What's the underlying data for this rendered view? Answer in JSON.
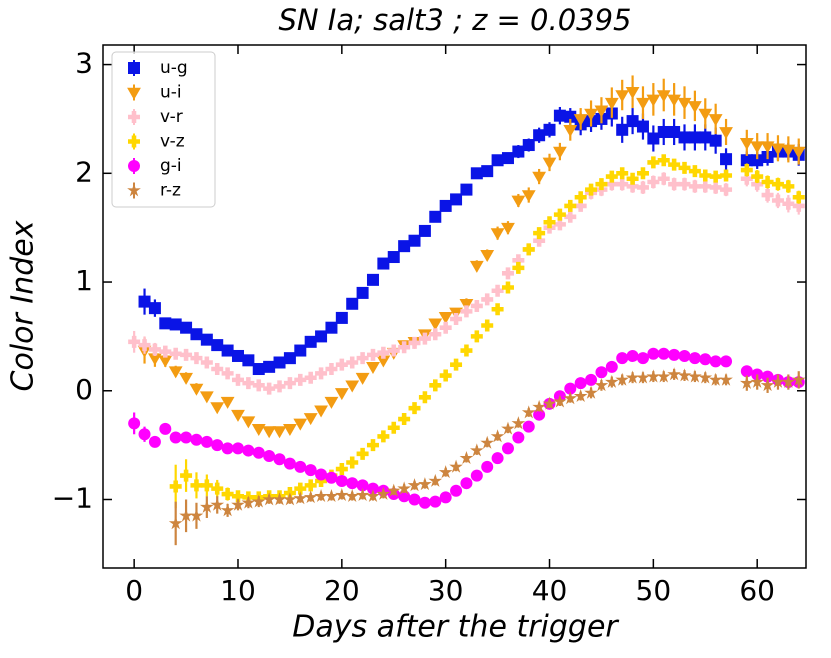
{
  "chart_data": {
    "type": "scatter",
    "title": "SN Ia; salt3 ; z  =  0.0395",
    "xlabel": "Days after the trigger",
    "ylabel": "Color Index",
    "xlim": [
      -3,
      64.7
    ],
    "ylim": [
      -1.63,
      3.18
    ],
    "xticks": [
      0,
      10,
      20,
      30,
      40,
      50,
      60
    ],
    "yticks": [
      {
        "value": -1,
        "label": "−1"
      },
      0,
      1,
      2,
      3
    ],
    "legend": "upper left",
    "x": [
      0,
      1,
      2,
      3,
      4,
      5,
      6,
      7,
      8,
      9,
      10,
      11,
      12,
      13,
      14,
      15,
      16,
      17,
      18,
      19,
      20,
      21,
      22,
      23,
      24,
      25,
      26,
      27,
      28,
      29,
      30,
      31,
      32,
      33,
      34,
      35,
      36,
      37,
      38,
      39,
      40,
      41,
      42,
      43,
      44,
      45,
      46,
      47,
      48,
      49,
      50,
      51,
      52,
      53,
      54,
      55,
      56,
      57,
      58,
      59,
      60,
      61,
      62,
      63,
      64
    ],
    "series": [
      {
        "name": "u-g",
        "color": "#0a14e6",
        "marker": "square",
        "values": [
          null,
          0.82,
          0.76,
          0.62,
          0.61,
          0.58,
          0.52,
          0.47,
          0.42,
          0.37,
          0.32,
          0.28,
          0.2,
          0.22,
          0.26,
          0.3,
          0.37,
          0.45,
          0.5,
          0.58,
          0.67,
          0.8,
          0.9,
          1.02,
          1.17,
          1.23,
          1.33,
          1.38,
          1.47,
          1.6,
          1.7,
          1.76,
          1.85,
          2.0,
          2.02,
          2.12,
          2.14,
          2.2,
          2.26,
          2.35,
          2.4,
          2.53,
          2.52,
          2.45,
          2.48,
          2.5,
          2.55,
          2.4,
          2.48,
          2.43,
          2.32,
          2.38,
          2.38,
          2.33,
          2.33,
          2.33,
          2.3,
          2.13,
          null,
          2.12,
          2.12,
          2.15,
          2.2,
          2.2,
          2.17
        ],
        "errors": [
          null,
          0.12,
          0.08,
          0.05,
          0.05,
          0.05,
          0.05,
          0.04,
          0.04,
          0.04,
          0.04,
          0.04,
          0.04,
          0.04,
          0.04,
          0.04,
          0.04,
          0.04,
          0.04,
          0.04,
          0.04,
          0.04,
          0.04,
          0.04,
          0.04,
          0.04,
          0.04,
          0.04,
          0.04,
          0.04,
          0.04,
          0.04,
          0.04,
          0.05,
          0.05,
          0.05,
          0.05,
          0.06,
          0.06,
          0.07,
          0.07,
          0.08,
          0.08,
          0.1,
          0.1,
          0.1,
          0.12,
          0.12,
          0.12,
          0.12,
          0.12,
          0.12,
          0.12,
          0.12,
          0.12,
          0.12,
          0.12,
          0.1,
          null,
          0.08,
          0.08,
          0.08,
          0.08,
          0.08,
          0.1
        ]
      },
      {
        "name": "u-i",
        "color": "#f39c12",
        "marker": "triangle-down",
        "values": [
          null,
          0.37,
          0.3,
          0.28,
          0.18,
          0.12,
          0.02,
          -0.05,
          -0.15,
          -0.1,
          -0.22,
          -0.28,
          -0.35,
          -0.37,
          -0.37,
          -0.35,
          -0.3,
          -0.25,
          -0.18,
          -0.1,
          -0.02,
          0.05,
          0.12,
          0.22,
          0.28,
          0.35,
          0.42,
          0.45,
          0.52,
          0.62,
          0.68,
          0.72,
          0.8,
          1.15,
          1.25,
          1.45,
          1.5,
          1.75,
          1.8,
          1.97,
          2.1,
          2.2,
          2.4,
          2.5,
          2.55,
          2.58,
          2.65,
          2.72,
          2.75,
          2.65,
          2.68,
          2.72,
          2.68,
          2.65,
          2.62,
          2.55,
          2.5,
          2.38,
          null,
          2.28,
          2.25,
          2.25,
          2.23,
          2.22,
          2.2
        ],
        "errors": [
          null,
          0.12,
          0.08,
          0.06,
          0.05,
          0.05,
          0.05,
          0.04,
          0.04,
          0.04,
          0.04,
          0.04,
          0.04,
          0.04,
          0.04,
          0.04,
          0.04,
          0.04,
          0.04,
          0.04,
          0.04,
          0.04,
          0.04,
          0.04,
          0.04,
          0.04,
          0.04,
          0.04,
          0.04,
          0.04,
          0.04,
          0.04,
          0.05,
          0.05,
          0.05,
          0.06,
          0.06,
          0.06,
          0.07,
          0.07,
          0.08,
          0.08,
          0.1,
          0.1,
          0.12,
          0.12,
          0.14,
          0.14,
          0.15,
          0.15,
          0.15,
          0.15,
          0.15,
          0.15,
          0.14,
          0.14,
          0.14,
          0.12,
          null,
          0.12,
          0.12,
          0.12,
          0.12,
          0.12,
          0.12
        ]
      },
      {
        "name": "v-r",
        "color": "#ffc0cb",
        "marker": "plus",
        "values": [
          0.45,
          0.42,
          0.38,
          0.36,
          0.34,
          0.33,
          0.3,
          0.26,
          0.2,
          0.16,
          0.1,
          0.07,
          0.05,
          0.02,
          0.04,
          0.07,
          0.1,
          0.12,
          0.16,
          0.2,
          0.24,
          0.26,
          0.3,
          0.33,
          0.35,
          0.37,
          0.4,
          0.44,
          0.48,
          0.52,
          0.58,
          0.66,
          0.73,
          0.78,
          0.84,
          0.92,
          1.08,
          1.2,
          1.3,
          1.38,
          1.5,
          1.53,
          1.6,
          1.7,
          1.82,
          1.85,
          1.9,
          1.9,
          1.88,
          1.87,
          1.92,
          1.95,
          1.9,
          1.9,
          1.88,
          1.88,
          1.87,
          1.85,
          null,
          1.95,
          1.9,
          1.8,
          1.75,
          1.72,
          1.7
        ],
        "errors": [
          0.1,
          0.08,
          0.06,
          0.05,
          0.05,
          0.05,
          0.04,
          0.04,
          0.04,
          0.04,
          0.04,
          0.04,
          0.04,
          0.04,
          0.04,
          0.04,
          0.04,
          0.04,
          0.04,
          0.04,
          0.04,
          0.04,
          0.04,
          0.04,
          0.04,
          0.04,
          0.04,
          0.04,
          0.04,
          0.04,
          0.04,
          0.04,
          0.04,
          0.04,
          0.04,
          0.04,
          0.04,
          0.04,
          0.05,
          0.05,
          0.05,
          0.05,
          0.05,
          0.05,
          0.06,
          0.06,
          0.06,
          0.06,
          0.06,
          0.06,
          0.06,
          0.06,
          0.06,
          0.06,
          0.06,
          0.06,
          0.06,
          0.06,
          null,
          0.07,
          0.07,
          0.07,
          0.07,
          0.08,
          0.08
        ]
      },
      {
        "name": "v-z",
        "color": "#ffd700",
        "marker": "plus-filled",
        "values": [
          null,
          null,
          null,
          null,
          -0.88,
          -0.78,
          -0.87,
          -0.87,
          -0.9,
          -0.95,
          -0.97,
          -0.98,
          -0.98,
          -0.97,
          -0.97,
          -0.94,
          -0.9,
          -0.87,
          -0.83,
          -0.78,
          -0.72,
          -0.66,
          -0.58,
          -0.5,
          -0.42,
          -0.34,
          -0.26,
          -0.16,
          -0.06,
          0.05,
          0.14,
          0.24,
          0.37,
          0.5,
          0.6,
          0.75,
          0.95,
          1.13,
          1.3,
          1.45,
          1.55,
          1.62,
          1.7,
          1.78,
          1.85,
          1.9,
          1.97,
          2.0,
          1.95,
          2.0,
          2.1,
          2.12,
          2.08,
          2.05,
          2.02,
          1.98,
          1.97,
          1.98,
          null,
          2.03,
          1.97,
          1.92,
          1.9,
          1.88,
          1.78
        ],
        "errors": [
          null,
          null,
          null,
          null,
          0.2,
          0.15,
          0.12,
          0.1,
          0.08,
          0.06,
          0.05,
          0.05,
          0.05,
          0.04,
          0.04,
          0.04,
          0.04,
          0.04,
          0.04,
          0.04,
          0.04,
          0.04,
          0.04,
          0.04,
          0.04,
          0.04,
          0.04,
          0.04,
          0.04,
          0.04,
          0.04,
          0.04,
          0.04,
          0.04,
          0.04,
          0.04,
          0.04,
          0.04,
          0.04,
          0.04,
          0.04,
          0.04,
          0.04,
          0.04,
          0.05,
          0.05,
          0.05,
          0.05,
          0.05,
          0.05,
          0.05,
          0.05,
          0.05,
          0.05,
          0.05,
          0.05,
          0.05,
          0.05,
          null,
          0.06,
          0.06,
          0.06,
          0.06,
          0.06,
          0.06
        ]
      },
      {
        "name": "g-i",
        "color": "#ff00ff",
        "marker": "circle",
        "values": [
          -0.3,
          -0.4,
          -0.47,
          -0.35,
          -0.43,
          -0.43,
          -0.45,
          -0.47,
          -0.5,
          -0.53,
          -0.53,
          -0.55,
          -0.57,
          -0.6,
          -0.63,
          -0.67,
          -0.7,
          -0.73,
          -0.77,
          -0.8,
          -0.83,
          -0.85,
          -0.87,
          -0.9,
          -0.92,
          -0.95,
          -0.97,
          -1.0,
          -1.03,
          -1.02,
          -0.98,
          -0.92,
          -0.85,
          -0.78,
          -0.7,
          -0.62,
          -0.53,
          -0.43,
          -0.33,
          -0.22,
          -0.12,
          -0.05,
          0.02,
          0.07,
          0.1,
          0.17,
          0.22,
          0.3,
          0.32,
          0.3,
          0.34,
          0.34,
          0.33,
          0.32,
          0.3,
          0.29,
          0.27,
          0.27,
          null,
          0.18,
          0.15,
          0.13,
          0.1,
          0.08,
          0.08
        ],
        "errors": [
          0.1,
          0.07,
          0.05,
          0.04,
          0.04,
          0.03,
          0.03,
          0.03,
          0.03,
          0.03,
          0.03,
          0.03,
          0.03,
          0.03,
          0.03,
          0.03,
          0.03,
          0.03,
          0.03,
          0.03,
          0.03,
          0.03,
          0.03,
          0.03,
          0.03,
          0.03,
          0.03,
          0.03,
          0.03,
          0.03,
          0.03,
          0.03,
          0.03,
          0.03,
          0.03,
          0.03,
          0.03,
          0.03,
          0.03,
          0.03,
          0.03,
          0.03,
          0.03,
          0.03,
          0.03,
          0.03,
          0.03,
          0.03,
          0.03,
          0.03,
          0.03,
          0.03,
          0.03,
          0.03,
          0.03,
          0.03,
          0.03,
          0.03,
          null,
          0.04,
          0.04,
          0.04,
          0.04,
          0.04,
          0.05
        ]
      },
      {
        "name": "r-z",
        "color": "#cd853f",
        "marker": "star",
        "values": [
          null,
          null,
          null,
          null,
          -1.22,
          -1.15,
          -1.15,
          -1.07,
          -1.05,
          -1.1,
          -1.05,
          -1.03,
          -1.02,
          -1.0,
          -1.0,
          -1.0,
          -0.99,
          -0.98,
          -0.97,
          -0.97,
          -0.96,
          -0.97,
          -0.96,
          -0.97,
          -0.95,
          -0.92,
          -0.9,
          -0.87,
          -0.86,
          -0.83,
          -0.75,
          -0.7,
          -0.62,
          -0.55,
          -0.48,
          -0.42,
          -0.35,
          -0.3,
          -0.2,
          -0.15,
          -0.12,
          -0.1,
          -0.07,
          -0.05,
          -0.02,
          0.05,
          0.08,
          0.1,
          0.12,
          0.12,
          0.13,
          0.13,
          0.15,
          0.14,
          0.13,
          0.12,
          0.1,
          0.1,
          null,
          0.07,
          0.08,
          0.05,
          0.08,
          0.08,
          0.1
        ],
        "errors": [
          null,
          null,
          null,
          null,
          0.2,
          0.15,
          0.12,
          0.1,
          0.08,
          0.06,
          0.05,
          0.05,
          0.05,
          0.04,
          0.04,
          0.04,
          0.04,
          0.04,
          0.04,
          0.04,
          0.04,
          0.04,
          0.04,
          0.04,
          0.04,
          0.04,
          0.04,
          0.04,
          0.04,
          0.04,
          0.04,
          0.04,
          0.04,
          0.04,
          0.04,
          0.04,
          0.04,
          0.04,
          0.04,
          0.04,
          0.04,
          0.04,
          0.04,
          0.04,
          0.05,
          0.05,
          0.05,
          0.05,
          0.05,
          0.05,
          0.05,
          0.05,
          0.05,
          0.05,
          0.05,
          0.05,
          0.05,
          0.05,
          null,
          0.07,
          0.07,
          0.07,
          0.07,
          0.07,
          0.08
        ]
      }
    ]
  }
}
